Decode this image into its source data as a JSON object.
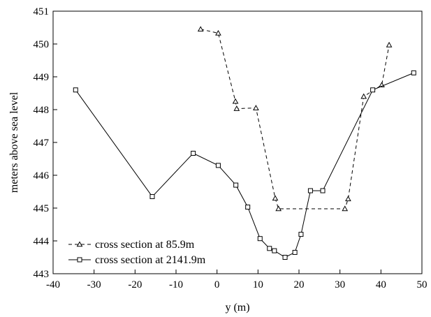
{
  "chart_data": {
    "type": "line",
    "title": "",
    "xlabel": "y (m)",
    "ylabel": "meters above sea level",
    "xlim": [
      -40,
      50
    ],
    "ylim": [
      443,
      451
    ],
    "xticks": [
      "-40",
      "-30",
      "-20",
      "-10",
      "0",
      "10",
      "20",
      "30",
      "40",
      "50"
    ],
    "yticks": [
      "443",
      "444",
      "445",
      "446",
      "447",
      "448",
      "449",
      "450",
      "451"
    ],
    "grid": false,
    "legend_position": "bottom-left",
    "series": [
      {
        "name": "cross section at 85.9m",
        "line_style": "dashed",
        "marker": "triangle",
        "color": "#000000",
        "points": [
          [
            -4,
            450.45
          ],
          [
            0.3,
            450.33
          ],
          [
            4.5,
            448.25
          ],
          [
            4.8,
            448.03
          ],
          [
            9.5,
            448.05
          ],
          [
            14.2,
            445.3
          ],
          [
            15,
            444.98
          ],
          [
            31.2,
            444.98
          ],
          [
            32,
            445.28
          ],
          [
            35.8,
            448.4
          ],
          [
            40.2,
            448.75
          ],
          [
            42,
            449.97
          ]
        ]
      },
      {
        "name": "cross section at 2141.9m",
        "line_style": "solid",
        "marker": "square",
        "color": "#000000",
        "points": [
          [
            -34.5,
            448.6
          ],
          [
            -15.8,
            445.35
          ],
          [
            -5.8,
            446.67
          ],
          [
            0.3,
            446.3
          ],
          [
            4.6,
            445.7
          ],
          [
            7.5,
            445.03
          ],
          [
            10.5,
            444.07
          ],
          [
            12.8,
            443.77
          ],
          [
            14,
            443.7
          ],
          [
            16.6,
            443.5
          ],
          [
            19,
            443.65
          ],
          [
            20.5,
            444.2
          ],
          [
            22.8,
            445.53
          ],
          [
            25.8,
            445.53
          ],
          [
            38,
            448.6
          ],
          [
            48,
            449.12
          ]
        ]
      }
    ]
  }
}
